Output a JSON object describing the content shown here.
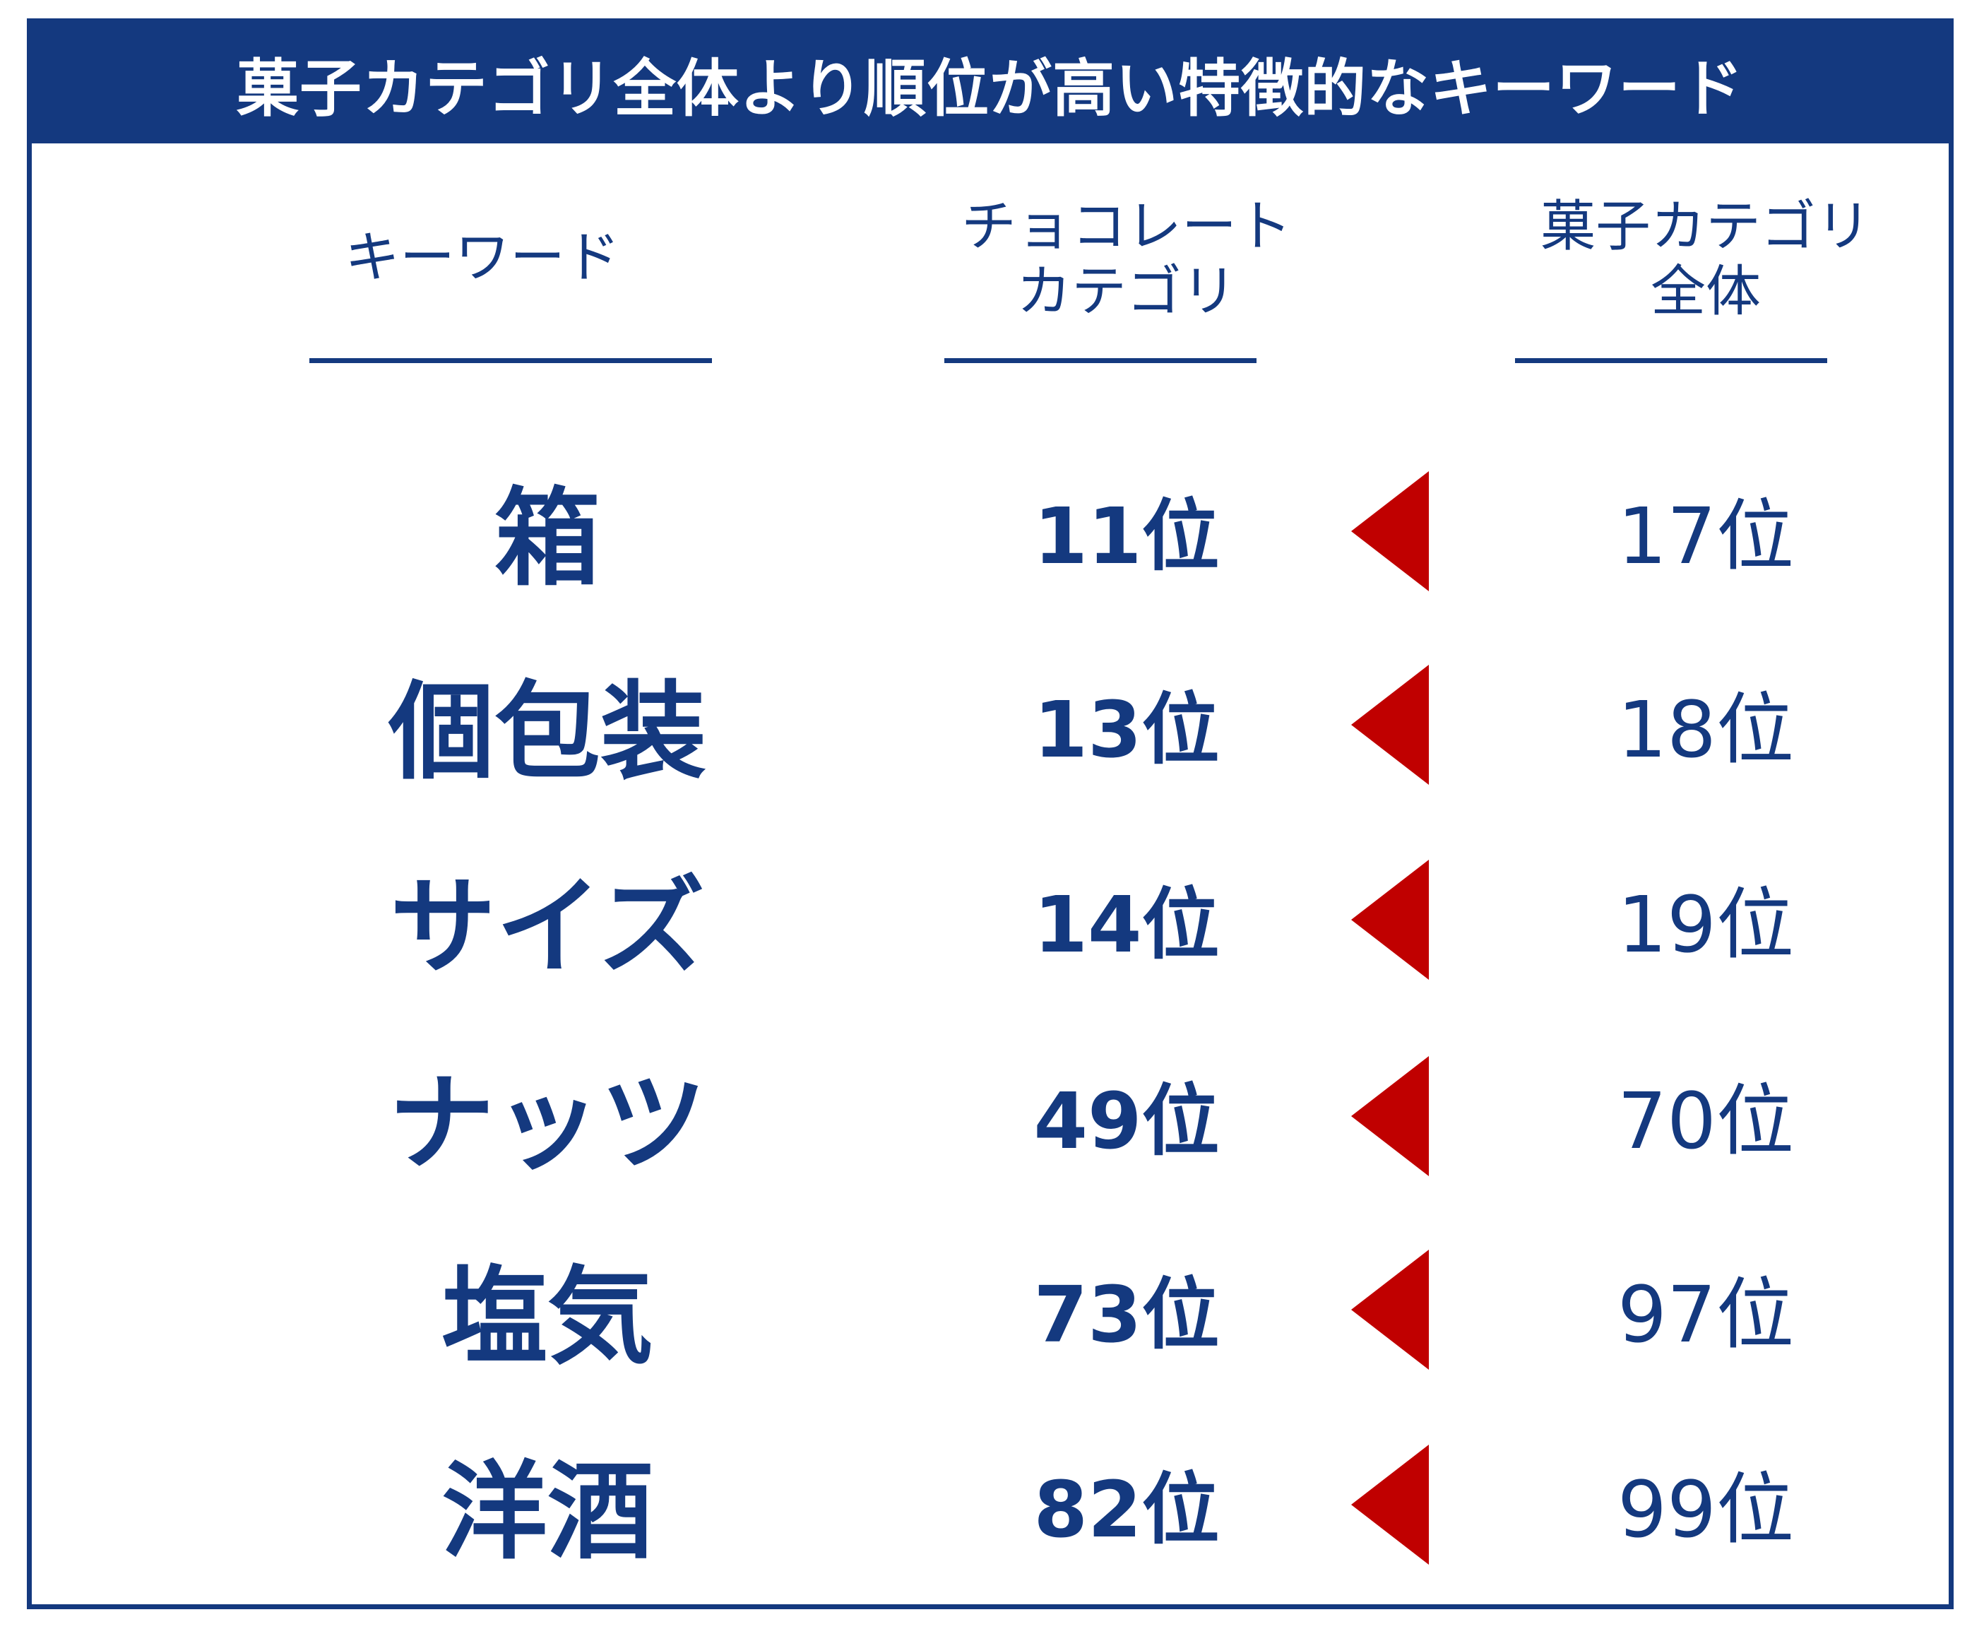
{
  "title": "菓子カテゴリ全体より順位が高い特徴的なキーワード",
  "headers": {
    "keyword": [
      "キーワード"
    ],
    "chocolate": [
      "チョコレート",
      "カテゴリ"
    ],
    "overall": [
      "菓子カテゴリ",
      "全体"
    ]
  },
  "colors": {
    "primary": "#14397f",
    "arrow": "#c00000",
    "background": "#ffffff"
  },
  "arrow_icon": "left-triangle-icon",
  "rows": [
    {
      "keyword": "箱",
      "chocolate_rank": "11位",
      "overall_rank": "17位"
    },
    {
      "keyword": "個包装",
      "chocolate_rank": "13位",
      "overall_rank": "18位"
    },
    {
      "keyword": "サイズ",
      "chocolate_rank": "14位",
      "overall_rank": "19位"
    },
    {
      "keyword": "ナッツ",
      "chocolate_rank": "49位",
      "overall_rank": "70位"
    },
    {
      "keyword": "塩気",
      "chocolate_rank": "73位",
      "overall_rank": "97位"
    },
    {
      "keyword": "洋酒",
      "chocolate_rank": "82位",
      "overall_rank": "99位"
    }
  ]
}
